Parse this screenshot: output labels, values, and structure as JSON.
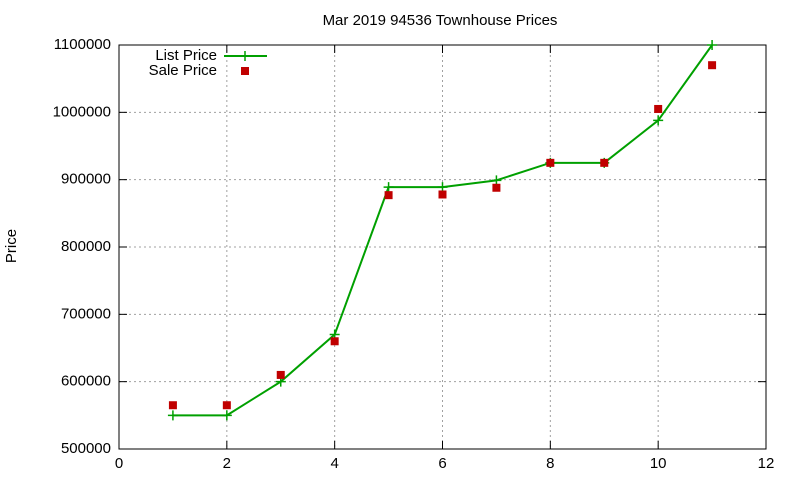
{
  "chart_data": {
    "type": "line",
    "title": "Mar 2019 94536 Townhouse Prices",
    "y_label": "Price",
    "x": [
      1,
      2,
      3,
      4,
      5,
      6,
      7,
      8,
      9,
      10,
      11
    ],
    "series": [
      {
        "name": "List Price",
        "color": "#00a000",
        "line": true,
        "marker": "plus",
        "values": [
          550000,
          550000,
          600000,
          670000,
          889000,
          889000,
          899000,
          925000,
          925000,
          988000,
          1100000
        ]
      },
      {
        "name": "Sale Price",
        "color": "#c00000",
        "line": false,
        "marker": "square",
        "values": [
          565000,
          565000,
          610000,
          660000,
          877000,
          878000,
          888000,
          925000,
          925000,
          1005000,
          1070000
        ]
      }
    ],
    "xlim": [
      0,
      12
    ],
    "xticks": [
      0,
      2,
      4,
      6,
      8,
      10,
      12
    ],
    "ylim": [
      500000,
      1100000
    ],
    "yticks": [
      500000,
      600000,
      700000,
      800000,
      900000,
      1000000,
      1100000
    ],
    "grid": true,
    "legend": "top-left"
  }
}
